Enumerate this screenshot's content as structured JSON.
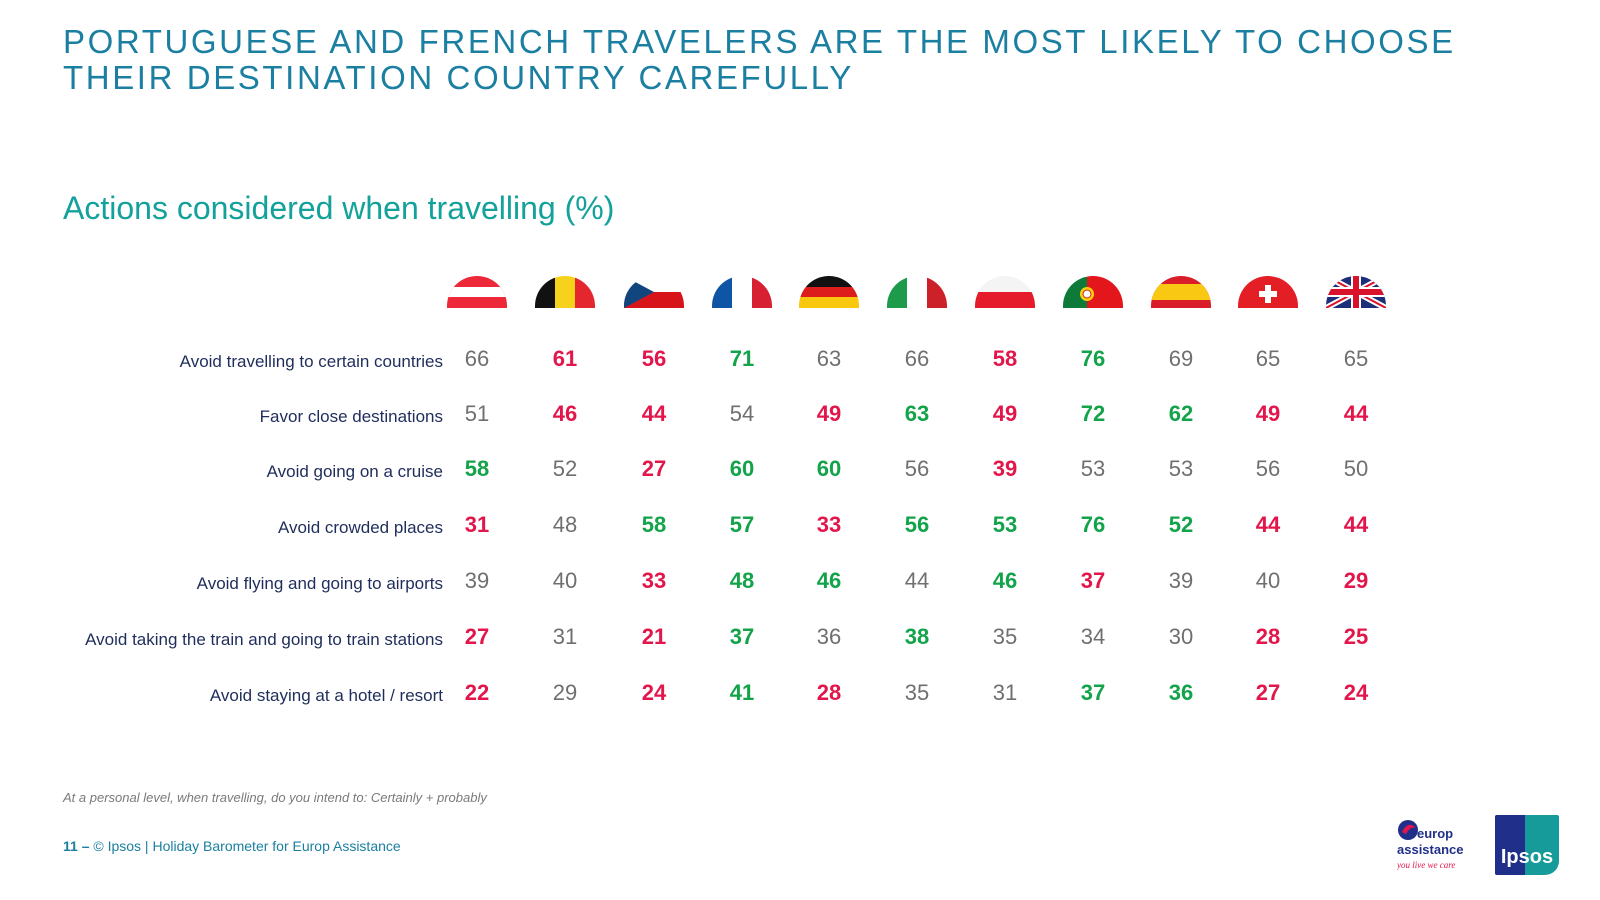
{
  "title_lines": [
    "PORTUGUESE AND FRENCH TRAVELERS ARE THE MOST LIKELY TO CHOOSE",
    "THEIR DESTINATION COUNTRY CAREFULLY"
  ],
  "subtitle": "Actions considered when travelling (%)",
  "note": "At a personal level, when travelling, do you intend to: Certainly + probably",
  "footer": {
    "page": "11 –",
    "text": "© Ipsos | Holiday Barometer for Europ Assistance"
  },
  "logos": {
    "europ_1": "europ",
    "europ_2": "assistance",
    "europ_tag": "you live we care",
    "ipsos": "Ipsos"
  },
  "colors": {
    "title": "#1a7fa0",
    "subtitle": "#13a19b",
    "high": "#13a34a",
    "low": "#e3164b",
    "neutral": "#6f6f6f",
    "label": "#1f2d5c"
  },
  "chart_data": {
    "type": "table",
    "title": "Actions considered when travelling (%)",
    "columns": [
      "austria",
      "belgium",
      "czech-republic",
      "france",
      "germany",
      "italy",
      "poland",
      "portugal",
      "spain",
      "switzerland",
      "uk"
    ],
    "rows": [
      {
        "label": "Avoid travelling to certain countries",
        "values": [
          66,
          61,
          56,
          71,
          63,
          66,
          58,
          76,
          69,
          65,
          65
        ],
        "status": [
          "n",
          "l",
          "l",
          "h",
          "n",
          "n",
          "l",
          "h",
          "n",
          "n",
          "n"
        ]
      },
      {
        "label": "Favor close destinations",
        "values": [
          51,
          46,
          44,
          54,
          49,
          63,
          49,
          72,
          62,
          49,
          44
        ],
        "status": [
          "n",
          "l",
          "l",
          "n",
          "l",
          "h",
          "l",
          "h",
          "h",
          "l",
          "l"
        ]
      },
      {
        "label": "Avoid going on a cruise",
        "values": [
          58,
          52,
          27,
          60,
          60,
          56,
          39,
          53,
          53,
          56,
          50
        ],
        "status": [
          "h",
          "n",
          "l",
          "h",
          "h",
          "n",
          "l",
          "n",
          "n",
          "n",
          "n"
        ]
      },
      {
        "label": "Avoid crowded places",
        "values": [
          31,
          48,
          58,
          57,
          33,
          56,
          53,
          76,
          52,
          44,
          44
        ],
        "status": [
          "l",
          "n",
          "h",
          "h",
          "l",
          "h",
          "h",
          "h",
          "h",
          "l",
          "l"
        ]
      },
      {
        "label": "Avoid flying and going to airports",
        "values": [
          39,
          40,
          33,
          48,
          46,
          44,
          46,
          37,
          39,
          40,
          29
        ],
        "status": [
          "n",
          "n",
          "l",
          "h",
          "h",
          "n",
          "h",
          "l",
          "n",
          "n",
          "l"
        ]
      },
      {
        "label": "Avoid taking the train and going to train stations",
        "values": [
          27,
          31,
          21,
          37,
          36,
          38,
          35,
          34,
          30,
          28,
          25
        ],
        "status": [
          "l",
          "n",
          "l",
          "h",
          "n",
          "h",
          "n",
          "n",
          "n",
          "l",
          "l"
        ]
      },
      {
        "label": "Avoid staying at a hotel / resort",
        "values": [
          22,
          29,
          24,
          41,
          28,
          35,
          31,
          37,
          36,
          27,
          24
        ],
        "status": [
          "l",
          "n",
          "l",
          "h",
          "l",
          "n",
          "n",
          "h",
          "h",
          "l",
          "l"
        ]
      }
    ]
  }
}
